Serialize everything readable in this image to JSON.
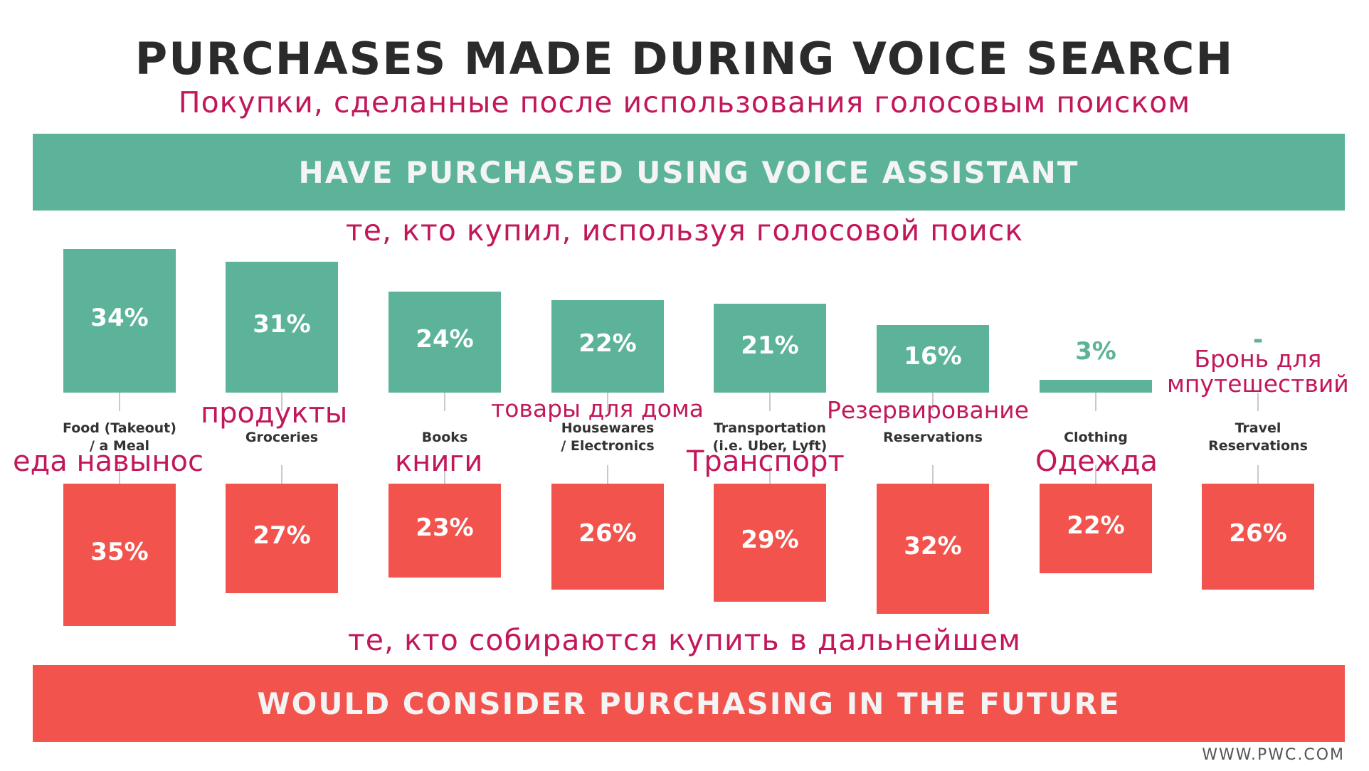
{
  "header": {
    "title": "PURCHASES MADE DURING VOICE SEARCH",
    "subtitle_ru": "Покупки, сделанные после использования голосовым поиском"
  },
  "banners": {
    "top": "HAVE PURCHASED USING VOICE ASSISTANT",
    "top_ru": "те, кто купил, используя голосовой поиск",
    "bottom_ru": "те, кто собираются купить в дальнейшем",
    "bottom": "WOULD CONSIDER PURCHASING IN THE FUTURE"
  },
  "source": "WWW.PWC.COM",
  "colors": {
    "purchased": "#5cb39a",
    "future": "#f2534d",
    "ru_text": "#c2185b"
  },
  "chart_data": {
    "type": "bar",
    "categories": [
      "Food (Takeout)\n/ a Meal",
      "Groceries",
      "Books",
      "Housewares\n/ Electronics",
      "Transportation\n(i.e. Uber, Lyft)",
      "Reservations",
      "Clothing",
      "Travel\nReservations"
    ],
    "categories_ru": [
      "еда навынос",
      "продукты",
      "книги",
      "товары для дома",
      "Транспорт",
      "Резервирование",
      "Одежда",
      "Бронь для\nмпутешествий"
    ],
    "series": [
      {
        "name": "HAVE PURCHASED USING VOICE ASSISTANT",
        "values": [
          34,
          31,
          24,
          22,
          21,
          16,
          3,
          null
        ],
        "labels": [
          "34%",
          "31%",
          "24%",
          "22%",
          "21%",
          "16%",
          "3%",
          "-"
        ]
      },
      {
        "name": "WOULD CONSIDER PURCHASING IN THE FUTURE",
        "values": [
          35,
          27,
          23,
          26,
          29,
          32,
          22,
          26
        ],
        "labels": [
          "35%",
          "27%",
          "23%",
          "26%",
          "29%",
          "32%",
          "22%",
          "26%"
        ]
      }
    ]
  }
}
